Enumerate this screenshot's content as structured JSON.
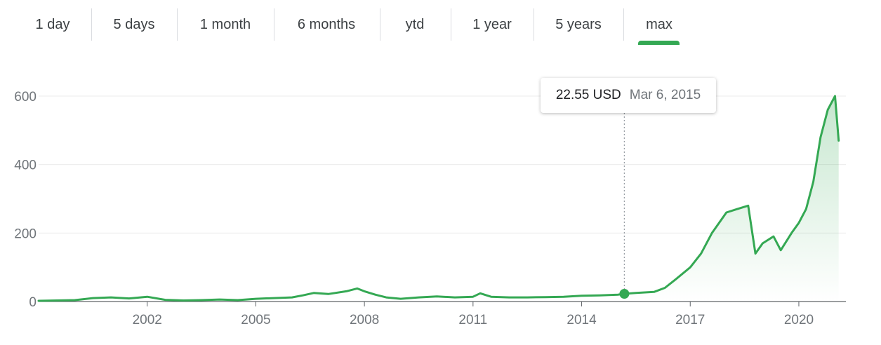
{
  "range_tabs": [
    {
      "label": "1 day",
      "selected": false
    },
    {
      "label": "5 days",
      "selected": false
    },
    {
      "label": "1 month",
      "selected": false
    },
    {
      "label": "6 months",
      "selected": false
    },
    {
      "label": "ytd",
      "selected": false
    },
    {
      "label": "1 year",
      "selected": false
    },
    {
      "label": "5 years",
      "selected": false
    },
    {
      "label": "max",
      "selected": true
    }
  ],
  "colors": {
    "line": "#34a853",
    "selected_underline": "#34a853",
    "gridline": "#ebebeb",
    "tick_text": "#70757a"
  },
  "tooltip": {
    "price": "22.55 USD",
    "date": "Mar 6, 2015"
  },
  "chart_data": {
    "type": "area",
    "title": "",
    "xlabel": "",
    "ylabel": "",
    "x_ticks": [
      "2002",
      "2005",
      "2008",
      "2011",
      "2014",
      "2017",
      "2020"
    ],
    "y_ticks": [
      "0",
      "200",
      "400",
      "600"
    ],
    "xlim": [
      1999.0,
      2021.3
    ],
    "ylim": [
      0,
      640
    ],
    "grid": "horizontal",
    "hover_point": {
      "x": 2015.18,
      "y": 22.55,
      "label": "22.55 USD",
      "date": "Mar 6, 2015"
    },
    "series": [
      {
        "x": [
          1999.0,
          1999.5,
          2000.0,
          2000.5,
          2001.0,
          2001.5,
          2002.0,
          2002.5,
          2003.0,
          2003.5,
          2004.0,
          2004.5,
          2005.0,
          2005.5,
          2006.0,
          2006.3,
          2006.6,
          2007.0,
          2007.5,
          2007.8,
          2008.0,
          2008.3,
          2008.6,
          2009.0,
          2009.5,
          2010.0,
          2010.5,
          2011.0,
          2011.2,
          2011.5,
          2012.0,
          2012.5,
          2013.0,
          2013.5,
          2014.0,
          2014.5,
          2015.0,
          2015.18,
          2015.5,
          2016.0,
          2016.3,
          2016.6,
          2017.0,
          2017.3,
          2017.6,
          2018.0,
          2018.3,
          2018.6,
          2018.8,
          2019.0,
          2019.3,
          2019.5,
          2019.8,
          2020.0,
          2020.2,
          2020.4,
          2020.6,
          2020.8,
          2021.0,
          2021.1
        ],
        "y": [
          2,
          3,
          4,
          10,
          12,
          9,
          14,
          5,
          3,
          4,
          6,
          4,
          8,
          10,
          12,
          18,
          25,
          22,
          30,
          38,
          30,
          20,
          12,
          8,
          12,
          15,
          12,
          14,
          24,
          14,
          12,
          12,
          13,
          14,
          17,
          18,
          20,
          22.55,
          25,
          28,
          40,
          65,
          100,
          140,
          200,
          260,
          270,
          280,
          140,
          170,
          190,
          150,
          200,
          230,
          270,
          350,
          480,
          560,
          600,
          470
        ]
      }
    ]
  }
}
